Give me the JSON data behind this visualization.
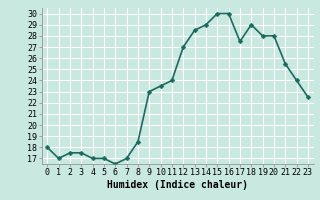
{
  "x": [
    0,
    1,
    2,
    3,
    4,
    5,
    6,
    7,
    8,
    9,
    10,
    11,
    12,
    13,
    14,
    15,
    16,
    17,
    18,
    19,
    20,
    21,
    22,
    23
  ],
  "y": [
    18,
    17,
    17.5,
    17.5,
    17,
    17,
    16.5,
    17,
    18.5,
    23,
    23.5,
    24,
    27,
    28.5,
    29,
    30,
    30,
    27.5,
    29,
    28,
    28,
    25.5,
    24,
    22.5
  ],
  "line_color": "#1a6b5e",
  "marker_color": "#1a6b5e",
  "bg_color": "#c8e8e0",
  "grid_color": "#b0d8d0",
  "xlabel": "Humidex (Indice chaleur)",
  "ylim": [
    16.5,
    30.5
  ],
  "xlim": [
    -0.5,
    23.5
  ],
  "yticks": [
    17,
    18,
    19,
    20,
    21,
    22,
    23,
    24,
    25,
    26,
    27,
    28,
    29,
    30
  ],
  "xticks": [
    0,
    1,
    2,
    3,
    4,
    5,
    6,
    7,
    8,
    9,
    10,
    11,
    12,
    13,
    14,
    15,
    16,
    17,
    18,
    19,
    20,
    21,
    22,
    23
  ],
  "xlabel_fontsize": 7,
  "tick_fontsize": 6,
  "line_width": 1.2,
  "marker_size": 2.5
}
